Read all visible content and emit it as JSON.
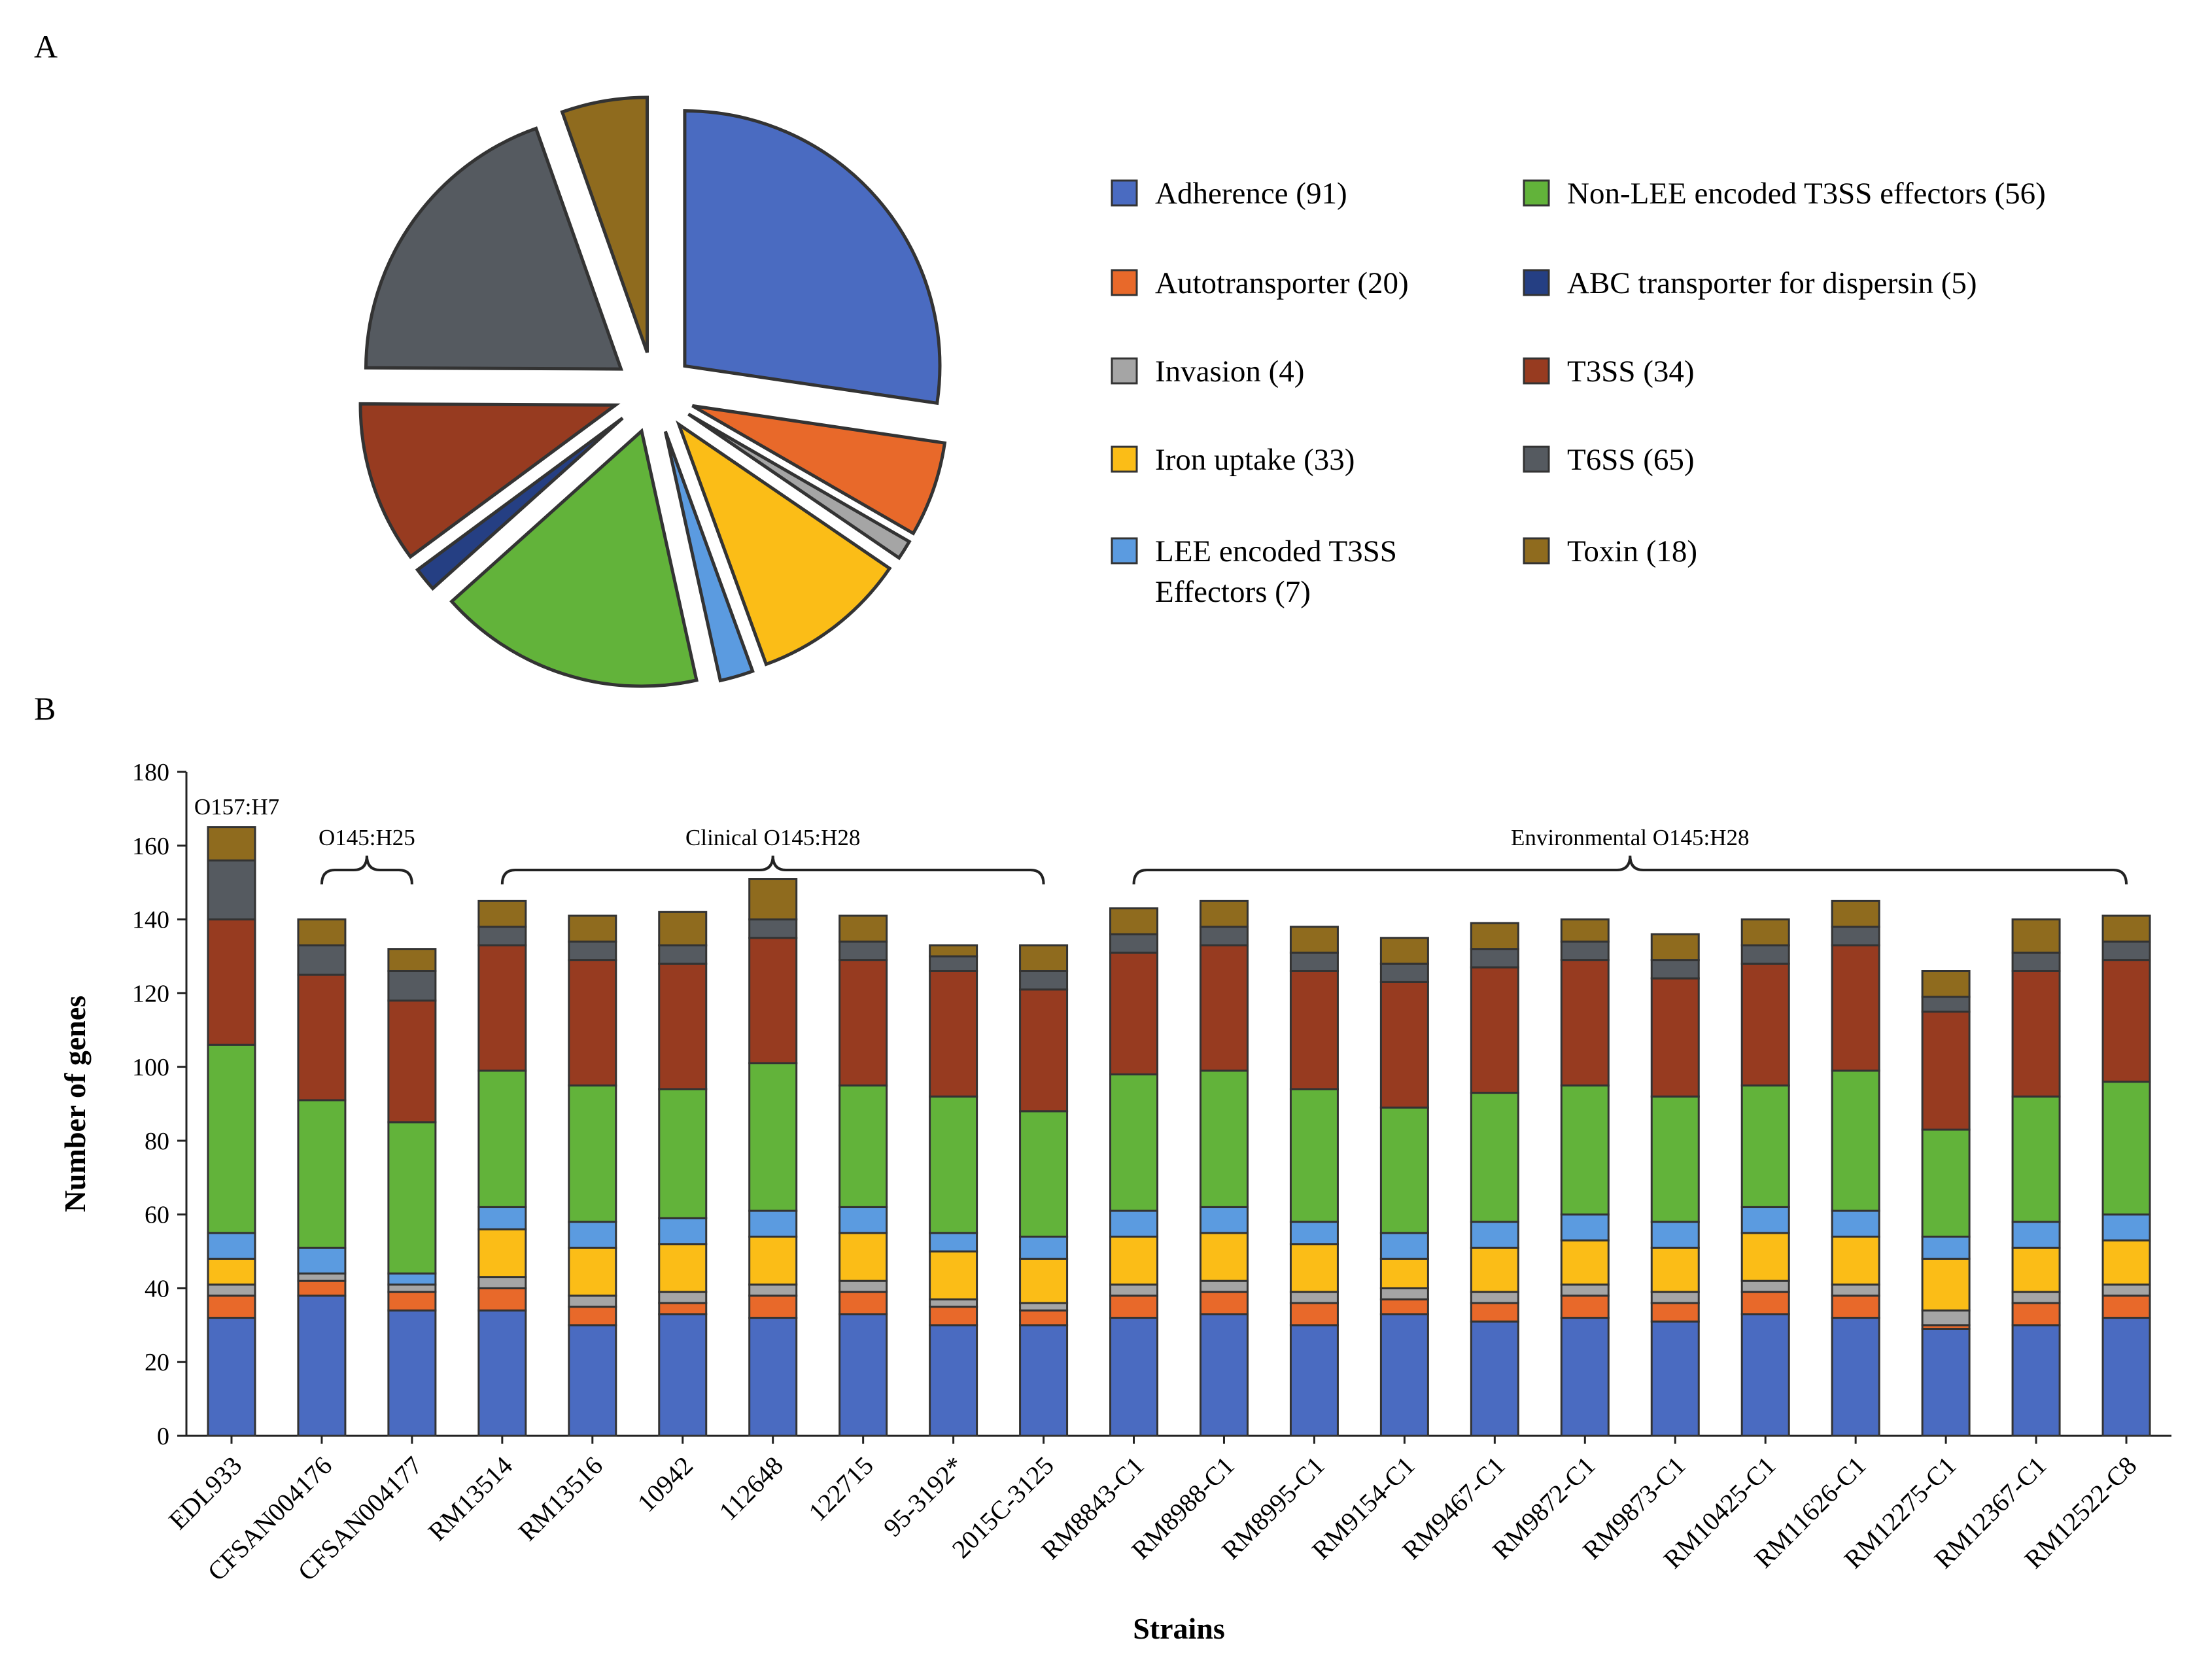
{
  "panels": {
    "a": "A",
    "b": "B"
  },
  "colors": {
    "Adherence": "#4a6bc1",
    "Autotransporter": "#e8692a",
    "Invasion": "#a5a5a5",
    "Iron uptake": "#fbbd17",
    "LEE encoded T3SS Effectors": "#5b9be0",
    "Non-LEE encoded T3SS effectors": "#62b33a",
    "ABC transporter for dispersin": "#253f83",
    "T3SS": "#973b20",
    "T6SS": "#555a60",
    "Toxin": "#8f6b1e"
  },
  "chart_data": [
    {
      "type": "pie",
      "categories": [
        "Adherence",
        "Autotransporter",
        "Invasion",
        "Iron uptake",
        "LEE encoded T3SS Effectors",
        "Non-LEE encoded T3SS effectors",
        "ABC transporter for dispersin",
        "T3SS",
        "T6SS",
        "Toxin"
      ],
      "values": [
        91,
        20,
        4,
        33,
        7,
        56,
        5,
        34,
        65,
        18
      ],
      "legend": [
        {
          "key": "Adherence",
          "lines": [
            "Adherence (91)"
          ]
        },
        {
          "key": "Autotransporter",
          "lines": [
            "Autotransporter (20)"
          ]
        },
        {
          "key": "Invasion",
          "lines": [
            "Invasion (4)"
          ]
        },
        {
          "key": "Iron uptake",
          "lines": [
            "Iron uptake (33)"
          ]
        },
        {
          "key": "LEE encoded T3SS Effectors",
          "lines": [
            "LEE encoded T3SS",
            "Effectors (7)"
          ]
        },
        {
          "key": "Non-LEE encoded T3SS effectors",
          "lines": [
            "Non-LEE encoded T3SS effectors (56)"
          ]
        },
        {
          "key": "ABC transporter for dispersin",
          "lines": [
            "ABC transporter for dispersin (5)"
          ]
        },
        {
          "key": "T3SS",
          "lines": [
            "T3SS (34)"
          ]
        },
        {
          "key": "T6SS",
          "lines": [
            "T6SS (65)"
          ]
        },
        {
          "key": "Toxin",
          "lines": [
            "Toxin (18)"
          ]
        }
      ]
    },
    {
      "type": "bar",
      "stacked": true,
      "xlabel": "Strains",
      "ylabel": "Number of genes",
      "ylim": [
        0,
        180
      ],
      "yticks": [
        0,
        20,
        40,
        60,
        80,
        100,
        120,
        140,
        160,
        180
      ],
      "categories": [
        "EDL933",
        "CFSAN004176",
        "CFSAN004177",
        "RM13514",
        "RM13516",
        "10942",
        "112648",
        "122715",
        "95-3192*",
        "2015C-3125",
        "RM8843-C1",
        "RM8988-C1",
        "RM8995-C1",
        "RM9154-C1",
        "RM9467-C1",
        "RM9872-C1",
        "RM9873-C1",
        "RM10425-C1",
        "RM11626-C1",
        "RM12275-C1",
        "RM12367-C1",
        "RM12522-C8"
      ],
      "groups": [
        {
          "label": "O157:H7",
          "from": 0,
          "to": 0,
          "bracket": false
        },
        {
          "label": "O145:H25",
          "from": 1,
          "to": 2,
          "bracket": true
        },
        {
          "label": "Clinical O145:H28",
          "from": 3,
          "to": 9,
          "bracket": true
        },
        {
          "label": "Environmental O145:H28",
          "from": 10,
          "to": 21,
          "bracket": true
        }
      ],
      "series": [
        {
          "name": "Adherence",
          "values": [
            32,
            38,
            34,
            34,
            30,
            33,
            32,
            33,
            30,
            30,
            32,
            33,
            30,
            33,
            31,
            32,
            31,
            33,
            32,
            29,
            30,
            32
          ]
        },
        {
          "name": "Autotransporter",
          "values": [
            6,
            4,
            5,
            6,
            5,
            3,
            6,
            6,
            5,
            4,
            6,
            6,
            6,
            4,
            5,
            6,
            5,
            6,
            6,
            1,
            6,
            6
          ]
        },
        {
          "name": "Invasion",
          "values": [
            3,
            2,
            2,
            3,
            3,
            3,
            3,
            3,
            2,
            2,
            3,
            3,
            3,
            3,
            3,
            3,
            3,
            3,
            3,
            4,
            3,
            3
          ]
        },
        {
          "name": "Iron uptake",
          "values": [
            7,
            0,
            0,
            13,
            13,
            13,
            13,
            13,
            13,
            12,
            13,
            13,
            13,
            8,
            12,
            12,
            12,
            13,
            13,
            14,
            12,
            12
          ]
        },
        {
          "name": "LEE encoded T3SS Effectors",
          "values": [
            7,
            7,
            3,
            6,
            7,
            7,
            7,
            7,
            5,
            6,
            7,
            7,
            6,
            7,
            7,
            7,
            7,
            7,
            7,
            6,
            7,
            7
          ]
        },
        {
          "name": "Non-LEE encoded T3SS effectors",
          "values": [
            51,
            40,
            41,
            37,
            37,
            35,
            40,
            33,
            37,
            34,
            37,
            37,
            36,
            34,
            35,
            35,
            34,
            33,
            38,
            29,
            34,
            36
          ]
        },
        {
          "name": "T3SS",
          "values": [
            34,
            34,
            33,
            34,
            34,
            34,
            34,
            34,
            34,
            33,
            33,
            34,
            32,
            34,
            34,
            34,
            32,
            33,
            34,
            32,
            34,
            33
          ]
        },
        {
          "name": "T6SS",
          "values": [
            16,
            8,
            8,
            5,
            5,
            5,
            5,
            5,
            4,
            5,
            5,
            5,
            5,
            5,
            5,
            5,
            5,
            5,
            5,
            4,
            5,
            5
          ]
        },
        {
          "name": "Toxin",
          "values": [
            9,
            7,
            6,
            7,
            7,
            9,
            11,
            7,
            3,
            7,
            7,
            7,
            7,
            7,
            7,
            6,
            7,
            7,
            7,
            7,
            9,
            7
          ]
        }
      ]
    }
  ]
}
